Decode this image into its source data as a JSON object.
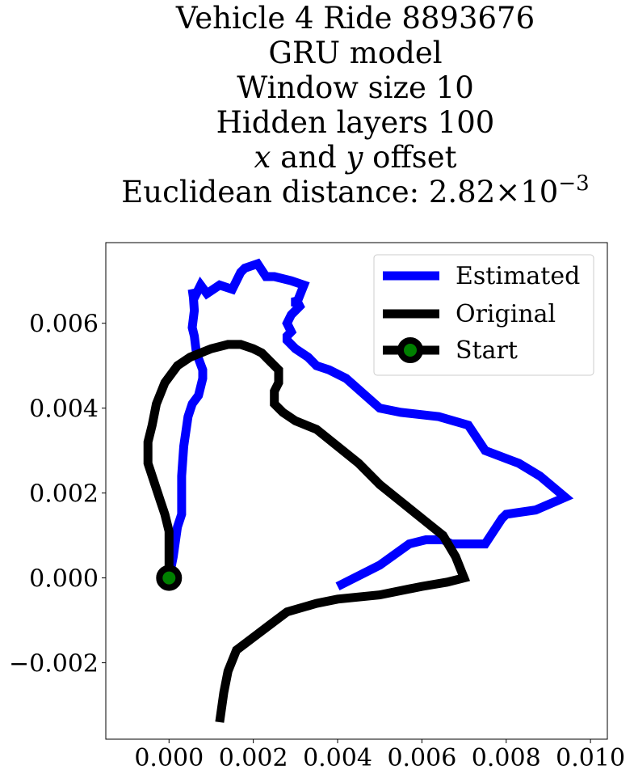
{
  "chart_data": {
    "type": "line",
    "title": [
      "Vehicle 4 Ride 8893676",
      "GRU model",
      "Window size 10",
      "Hidden layers 100",
      "x and y offset",
      "Euclidean distance: 2.82×10⁻³"
    ],
    "title_parts": {
      "line5": {
        "x": "x",
        "mid": " and ",
        "y": "y",
        "end": " offset"
      },
      "line6": {
        "text": "Euclidean distance: 2.82",
        "times": "×",
        "base": "10",
        "exp": "−3"
      }
    },
    "xlabel": "",
    "ylabel": "",
    "xlim": [
      -0.0015,
      0.0104
    ],
    "ylim": [
      -0.0038,
      0.0079
    ],
    "xticks": [
      {
        "value": 0.0,
        "label": "0.000"
      },
      {
        "value": 0.002,
        "label": "0.002"
      },
      {
        "value": 0.004,
        "label": "0.004"
      },
      {
        "value": 0.006,
        "label": "0.006"
      },
      {
        "value": 0.008,
        "label": "0.008"
      },
      {
        "value": 0.01,
        "label": "0.010"
      }
    ],
    "yticks": [
      {
        "value": -0.002,
        "label": "−0.002"
      },
      {
        "value": 0.0,
        "label": "0.000"
      },
      {
        "value": 0.002,
        "label": "0.002"
      },
      {
        "value": 0.004,
        "label": "0.004"
      },
      {
        "value": 0.006,
        "label": "0.006"
      }
    ],
    "grid": false,
    "legend": {
      "position": "upper right",
      "entries": [
        "Estimated",
        "Original",
        "Start"
      ]
    },
    "series": [
      {
        "name": "Estimated",
        "color": "#0000ff",
        "x": [
          0.0,
          0.0001,
          0.0002,
          0.0003,
          0.0003,
          0.00035,
          0.00045,
          0.00055,
          0.0007,
          0.0008,
          0.0008,
          0.00065,
          0.0006,
          0.00055,
          0.0006,
          0.00058,
          0.00055,
          0.0006,
          0.00075,
          0.0009,
          0.0012,
          0.0015,
          0.0017,
          0.0018,
          0.0021,
          0.0023,
          0.0024,
          0.0025,
          0.0025,
          0.0029,
          0.0032,
          0.003,
          0.003,
          0.0031,
          0.0029,
          0.0028,
          0.0029,
          0.0028,
          0.0028,
          0.003,
          0.0033,
          0.0035,
          0.0038,
          0.0042,
          0.005,
          0.0055,
          0.0064,
          0.0071,
          0.0075,
          0.0083,
          0.0088,
          0.0094,
          0.0087,
          0.008,
          0.0079,
          0.0075,
          0.0067,
          0.0065,
          0.0061,
          0.0057,
          0.005,
          0.004
        ],
        "y": [
          0.0,
          0.0005,
          0.0012,
          0.0015,
          0.0024,
          0.0031,
          0.0038,
          0.0041,
          0.0043,
          0.0047,
          0.0049,
          0.0053,
          0.0057,
          0.0059,
          0.0063,
          0.0066,
          0.0068,
          0.0066,
          0.0069,
          0.0067,
          0.0069,
          0.0068,
          0.0072,
          0.0073,
          0.0074,
          0.0071,
          0.0071,
          0.0071,
          0.0071,
          0.007,
          0.0069,
          0.0064,
          0.0066,
          0.0064,
          0.0062,
          0.006,
          0.0058,
          0.0057,
          0.0056,
          0.0054,
          0.0052,
          0.005,
          0.0049,
          0.0047,
          0.004,
          0.0039,
          0.0038,
          0.0036,
          0.003,
          0.0027,
          0.0024,
          0.0019,
          0.0016,
          0.0015,
          0.0014,
          0.0008,
          0.0008,
          0.0009,
          0.0009,
          0.0008,
          0.0003,
          -0.0002
        ]
      },
      {
        "name": "Original",
        "color": "#000000",
        "x": [
          0.0,
          0.0,
          0.0,
          -0.0001,
          -0.0002,
          -0.0003,
          -0.0004,
          -0.0005,
          -0.0005,
          -0.0004,
          -0.0003,
          -0.0001,
          0.0002,
          0.0005,
          0.001,
          0.0014,
          0.0017,
          0.002,
          0.0022,
          0.0024,
          0.0026,
          0.0026,
          0.0025,
          0.0025,
          0.0027,
          0.003,
          0.0035,
          0.004,
          0.0045,
          0.005,
          0.0055,
          0.006,
          0.0065,
          0.0068,
          0.007,
          0.0066,
          0.006,
          0.005,
          0.004,
          0.0035,
          0.0028,
          0.0024,
          0.002,
          0.0016,
          0.0014,
          0.0013,
          0.0012
        ],
        "y": [
          0.0,
          0.0005,
          0.0011,
          0.0015,
          0.0018,
          0.0021,
          0.0024,
          0.0027,
          0.0032,
          0.0036,
          0.0041,
          0.0046,
          0.005,
          0.0052,
          0.0054,
          0.0055,
          0.0055,
          0.0054,
          0.0053,
          0.0051,
          0.0049,
          0.0046,
          0.0044,
          0.0041,
          0.0039,
          0.0037,
          0.0035,
          0.0031,
          0.0027,
          0.0022,
          0.0018,
          0.0014,
          0.001,
          0.0005,
          0.0,
          -0.0001,
          -0.0002,
          -0.0004,
          -0.0005,
          -0.0006,
          -0.0008,
          -0.0011,
          -0.0014,
          -0.0017,
          -0.0022,
          -0.0027,
          -0.0034
        ]
      }
    ],
    "start_point": {
      "name": "Start",
      "x": 0.0,
      "y": 0.0,
      "marker_face": "#008000",
      "marker_edge": "#000000"
    }
  }
}
